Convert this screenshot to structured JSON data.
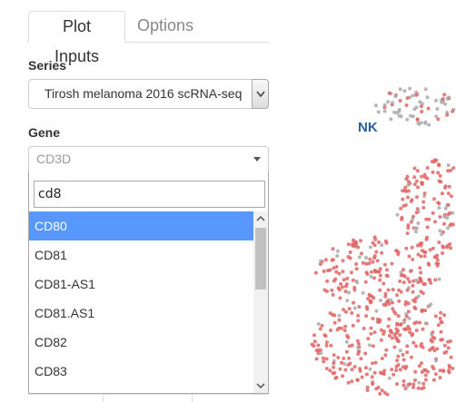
{
  "tabs": [
    {
      "label": "Plot Inputs",
      "active": true
    },
    {
      "label": "Options",
      "active": false
    }
  ],
  "series": {
    "label": "Series",
    "value": "Tirosh melanoma 2016 scRNA-seq"
  },
  "gene": {
    "label": "Gene",
    "placeholder": "CD3D",
    "search_text": "cd8",
    "options": [
      "CD80",
      "CD81",
      "CD81-AS1",
      "CD81.AS1",
      "CD82",
      "CD83"
    ],
    "highlighted_index": 0
  },
  "plot": {
    "cluster_label": "NK",
    "colors": {
      "expressed": "#e06666",
      "not_expressed": "#aaaaaa",
      "label": "#2a5f9e",
      "highlight": "#5897fb"
    }
  }
}
